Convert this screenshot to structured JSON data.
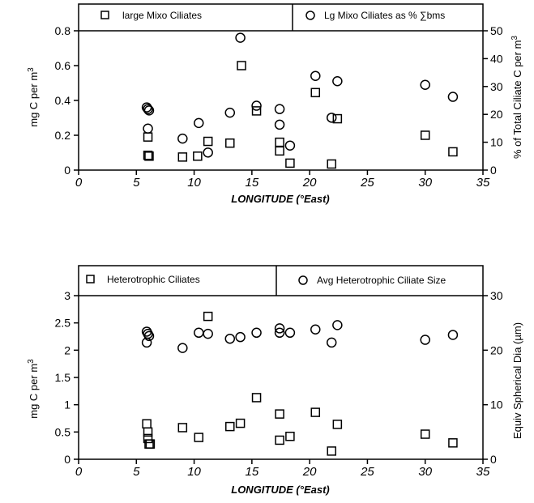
{
  "chart_data": [
    {
      "type": "scatter",
      "xlabel": "LONGITUDE (°East)",
      "ylabel": "mg C per m",
      "ylabel_sup": "3",
      "y2label": "% of Total Ciliate C per m",
      "y2label_sup": "3",
      "xlim": [
        0,
        35
      ],
      "ylim": [
        0,
        0.8
      ],
      "y2lim": [
        0,
        50
      ],
      "xticks": [
        "0",
        "5",
        "10",
        "15",
        "20",
        "25",
        "30",
        "35"
      ],
      "yticks": [
        "0",
        "0.2",
        "0.4",
        "0.6",
        "0.8"
      ],
      "y2ticks": [
        "0",
        "10",
        "20",
        "30",
        "40",
        "50"
      ],
      "legend_left": "large Mixo Ciliates",
      "legend_right": "Lg Mixo Ciliates as % ∑bms",
      "series": [
        {
          "name": "large Mixo Ciliates",
          "marker": "square",
          "axis": "left",
          "points": [
            [
              6,
              0.19
            ],
            [
              6,
              0.085
            ],
            [
              6.1,
              0.08
            ],
            [
              9,
              0.075
            ],
            [
              10.3,
              0.08
            ],
            [
              11.2,
              0.165
            ],
            [
              13.1,
              0.155
            ],
            [
              14.1,
              0.6
            ],
            [
              15.4,
              0.34
            ],
            [
              17.4,
              0.16
            ],
            [
              17.4,
              0.11
            ],
            [
              18.3,
              0.04
            ],
            [
              20.5,
              0.445
            ],
            [
              21.9,
              0.035
            ],
            [
              22.4,
              0.295
            ],
            [
              30,
              0.2
            ],
            [
              32.4,
              0.105
            ]
          ]
        },
        {
          "name": "Lg Mixo Ciliates as % ∑bms",
          "marker": "circle",
          "axis": "right",
          "points": [
            [
              5.9,
              22.5
            ],
            [
              6,
              21.9
            ],
            [
              6.1,
              21.4
            ],
            [
              6,
              14.9
            ],
            [
              9,
              11.3
            ],
            [
              10.4,
              16.9
            ],
            [
              11.2,
              6.3
            ],
            [
              13.1,
              20.6
            ],
            [
              14,
              47.5
            ],
            [
              15.4,
              23.1
            ],
            [
              17.4,
              21.9
            ],
            [
              17.4,
              16.3
            ],
            [
              18.3,
              8.8
            ],
            [
              20.5,
              33.8
            ],
            [
              21.9,
              18.8
            ],
            [
              22.4,
              31.9
            ],
            [
              30,
              30.6
            ],
            [
              32.4,
              26.3
            ]
          ]
        }
      ]
    },
    {
      "type": "scatter",
      "xlabel": "LONGITUDE (°East)",
      "ylabel": "mg C per m",
      "ylabel_sup": "3",
      "y2label": "Equiv Spherical Dia (µm)",
      "xlim": [
        0,
        35
      ],
      "ylim": [
        0,
        3
      ],
      "y2lim": [
        0,
        30
      ],
      "xticks": [
        "0",
        "5",
        "10",
        "15",
        "20",
        "25",
        "30",
        "35"
      ],
      "yticks": [
        "0",
        "0.5",
        "1",
        "1.5",
        "2",
        "2.5",
        "3"
      ],
      "y2ticks": [
        "0",
        "10",
        "20",
        "30"
      ],
      "legend_left": "Heterotrophic Ciliates",
      "legend_right": "Avg Heterotrophic Ciliate Size",
      "series": [
        {
          "name": "Heterotrophic Ciliates",
          "marker": "square",
          "axis": "left",
          "points": [
            [
              5.9,
              0.65
            ],
            [
              6,
              0.5
            ],
            [
              6,
              0.38
            ],
            [
              6.1,
              0.28
            ],
            [
              6.2,
              0.28
            ],
            [
              9,
              0.58
            ],
            [
              10.4,
              0.4
            ],
            [
              11.2,
              2.62
            ],
            [
              13.1,
              0.6
            ],
            [
              14,
              0.66
            ],
            [
              15.4,
              1.13
            ],
            [
              17.4,
              0.83
            ],
            [
              17.4,
              0.35
            ],
            [
              18.3,
              0.42
            ],
            [
              20.5,
              0.86
            ],
            [
              21.9,
              0.15
            ],
            [
              22.4,
              0.64
            ],
            [
              30,
              0.46
            ],
            [
              32.4,
              0.3
            ]
          ]
        },
        {
          "name": "Avg Heterotrophic Ciliate Size",
          "marker": "circle",
          "axis": "right",
          "points": [
            [
              5.9,
              23.4
            ],
            [
              6,
              23
            ],
            [
              6.1,
              22.6
            ],
            [
              5.9,
              21.4
            ],
            [
              9,
              20.4
            ],
            [
              10.4,
              23.2
            ],
            [
              11.2,
              23
            ],
            [
              13.1,
              22.1
            ],
            [
              14,
              22.4
            ],
            [
              15.4,
              23.2
            ],
            [
              17.4,
              24
            ],
            [
              17.4,
              23.2
            ],
            [
              18.3,
              23.2
            ],
            [
              20.5,
              23.8
            ],
            [
              21.9,
              21.4
            ],
            [
              22.4,
              24.6
            ],
            [
              30,
              21.9
            ],
            [
              32.4,
              22.8
            ]
          ]
        }
      ]
    }
  ]
}
